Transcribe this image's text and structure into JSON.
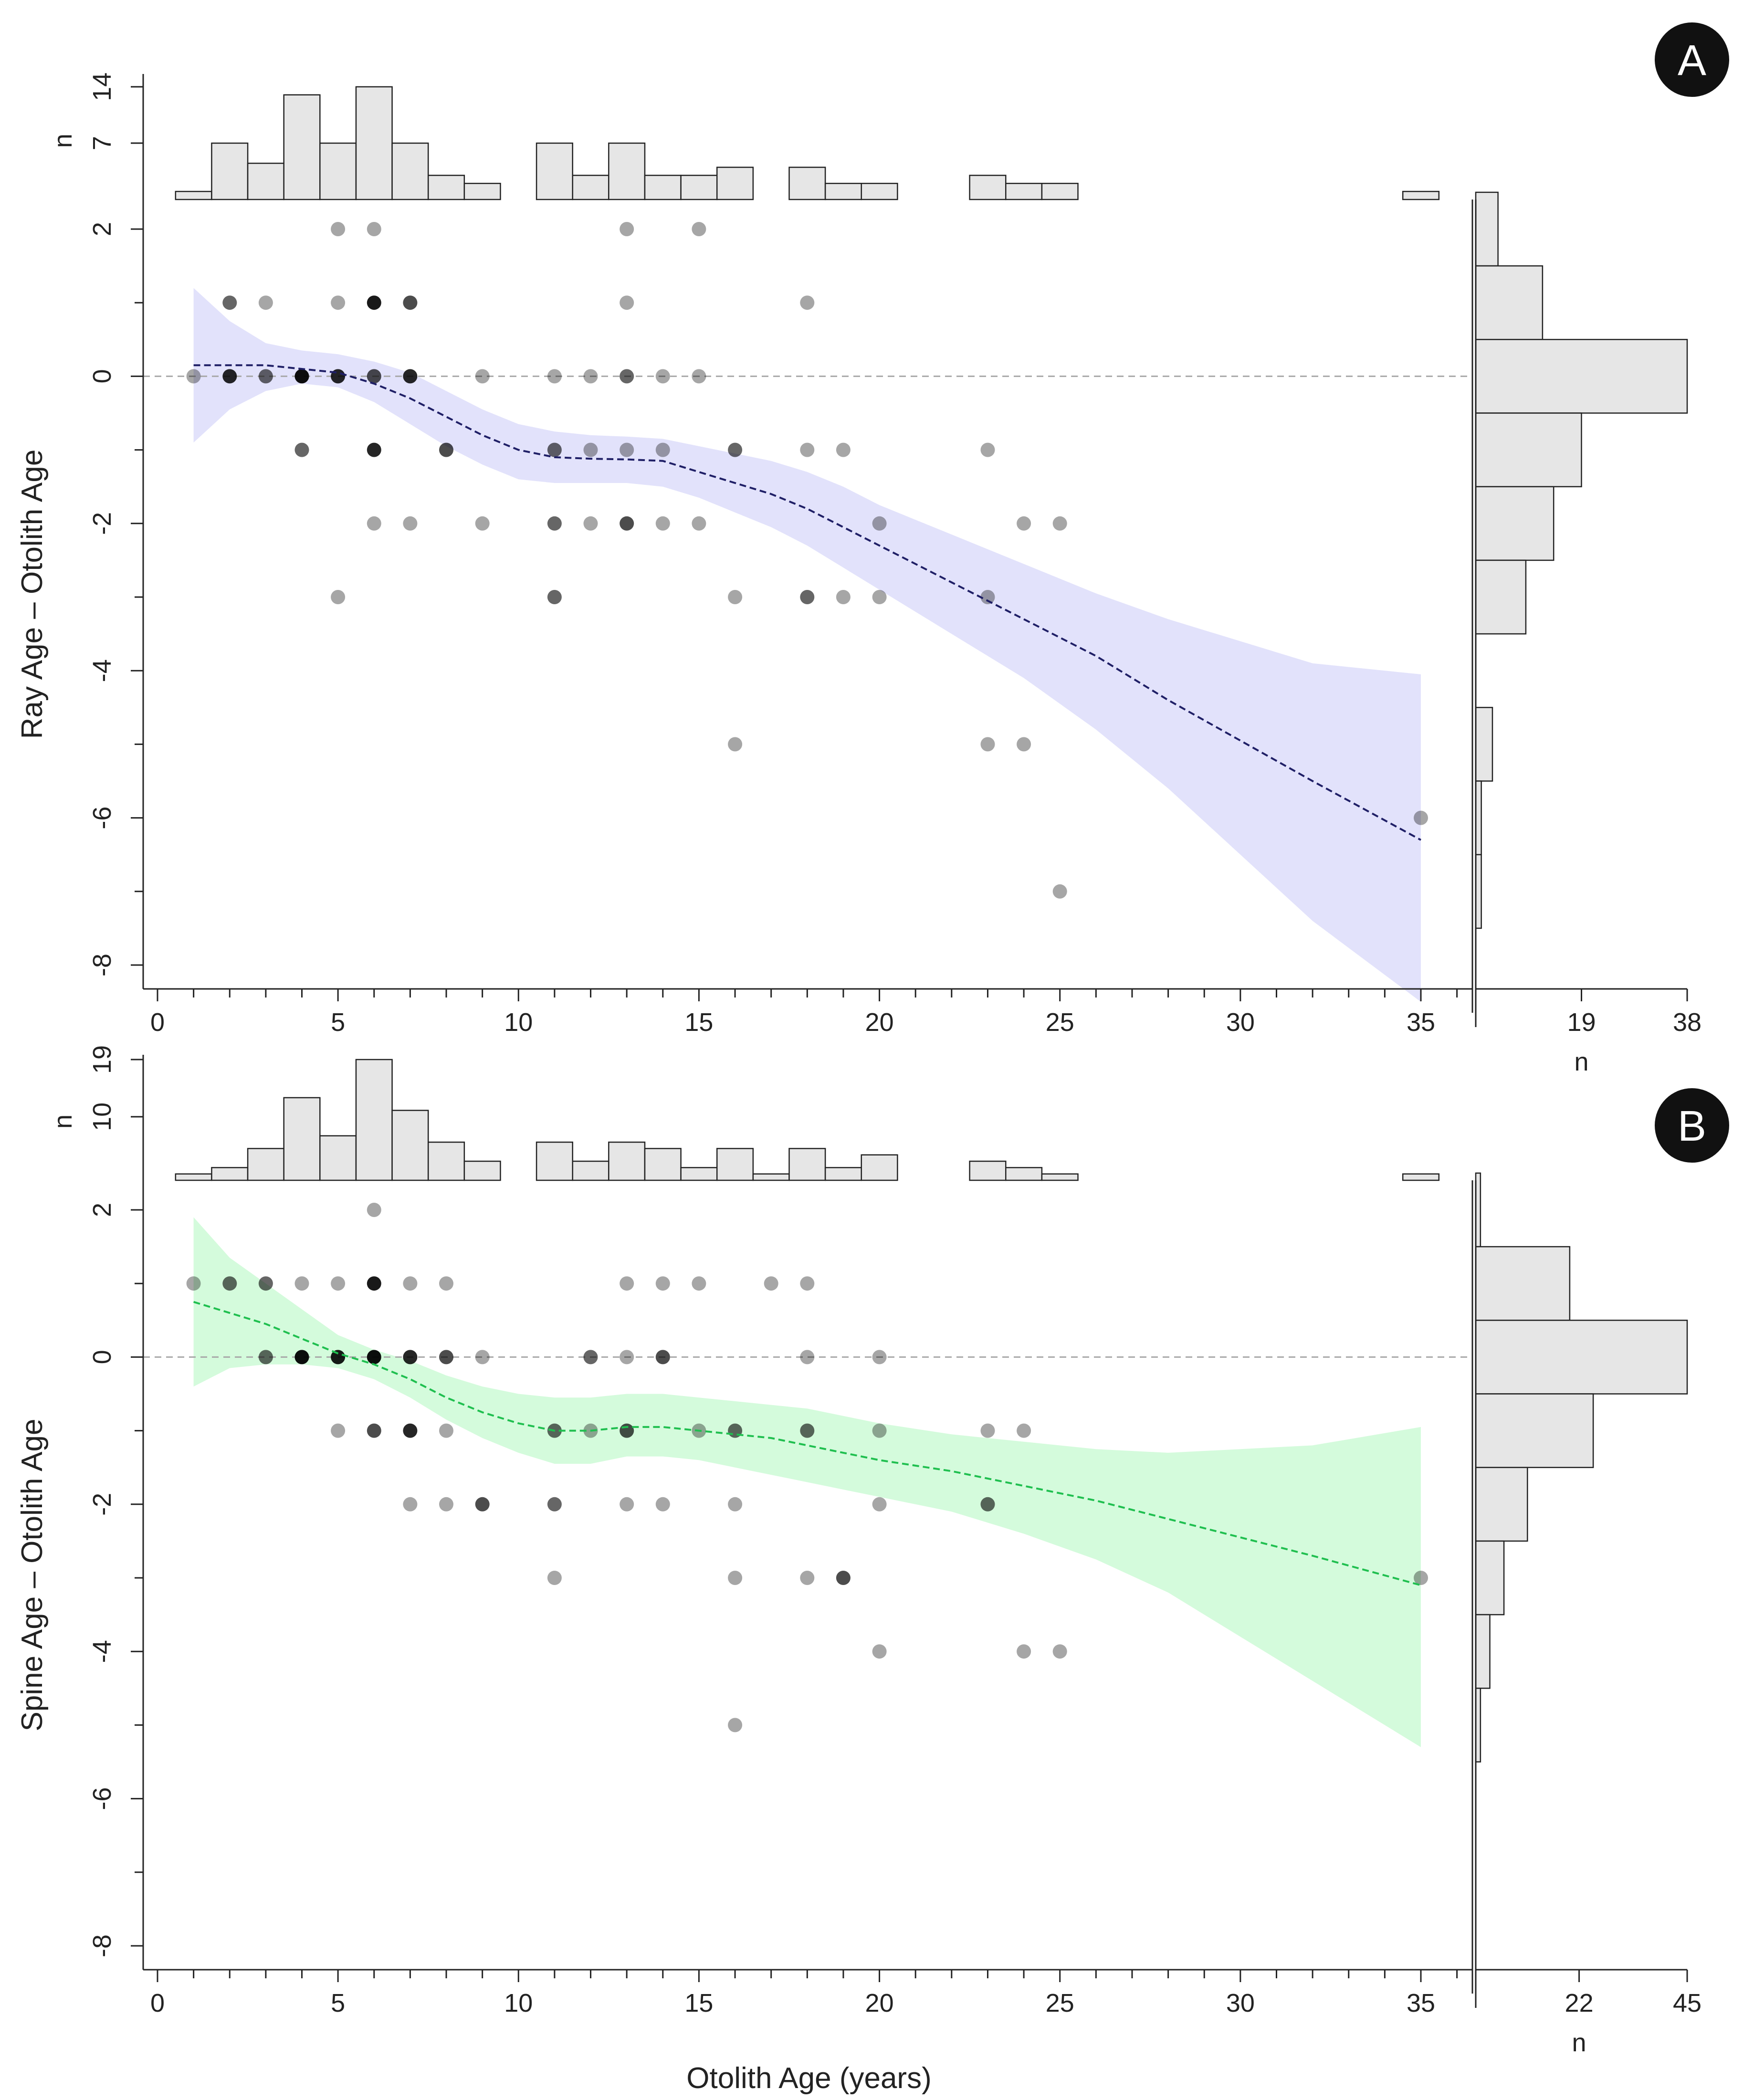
{
  "chart_data": [
    {
      "type": "scatter",
      "panel_label": "A",
      "ylabel": "Ray Age – Otolith Age",
      "xlabel": "",
      "xlim": [
        0,
        36
      ],
      "ylim": [
        -8.4,
        2.4
      ],
      "xticks": [
        "0",
        "5",
        "10",
        "15",
        "20",
        "25",
        "30",
        "35"
      ],
      "yticks": [
        "2",
        "0",
        "-2",
        "-4",
        "-6",
        "-8"
      ],
      "reference_line": 0,
      "smoother": {
        "color": "#1f1f66",
        "band_color": "#e2e2fb",
        "x": [
          1,
          2,
          3,
          4,
          5,
          6,
          7,
          8,
          9,
          10,
          11,
          12,
          13,
          14,
          15,
          16,
          17,
          18,
          19,
          20,
          22,
          24,
          26,
          28,
          30,
          32,
          35
        ],
        "y": [
          0.15,
          0.15,
          0.15,
          0.1,
          0.05,
          -0.1,
          -0.3,
          -0.55,
          -0.8,
          -1.0,
          -1.1,
          -1.12,
          -1.13,
          -1.15,
          -1.3,
          -1.45,
          -1.6,
          -1.8,
          -2.05,
          -2.3,
          -2.8,
          -3.3,
          -3.8,
          -4.4,
          -4.95,
          -5.5,
          -6.3
        ],
        "lower": [
          -0.9,
          -0.45,
          -0.2,
          -0.1,
          -0.15,
          -0.35,
          -0.65,
          -0.95,
          -1.2,
          -1.4,
          -1.45,
          -1.45,
          -1.45,
          -1.5,
          -1.65,
          -1.85,
          -2.05,
          -2.3,
          -2.6,
          -2.9,
          -3.5,
          -4.1,
          -4.8,
          -5.6,
          -6.5,
          -7.4,
          -8.5
        ],
        "upper": [
          1.2,
          0.75,
          0.45,
          0.35,
          0.3,
          0.2,
          0.05,
          -0.2,
          -0.45,
          -0.65,
          -0.75,
          -0.8,
          -0.82,
          -0.85,
          -0.95,
          -1.05,
          -1.15,
          -1.3,
          -1.5,
          -1.75,
          -2.15,
          -2.55,
          -2.95,
          -3.3,
          -3.6,
          -3.9,
          -4.05
        ]
      },
      "points": [
        {
          "x": 1,
          "y": 0,
          "alpha": 0.35
        },
        {
          "x": 2,
          "y": 1,
          "alpha": 0.6
        },
        {
          "x": 2,
          "y": 0,
          "alpha": 0.85
        },
        {
          "x": 3,
          "y": 1,
          "alpha": 0.35
        },
        {
          "x": 3,
          "y": 0,
          "alpha": 0.6
        },
        {
          "x": 4,
          "y": 0,
          "alpha": 0.95
        },
        {
          "x": 4,
          "y": -1,
          "alpha": 0.6
        },
        {
          "x": 5,
          "y": 2,
          "alpha": 0.35
        },
        {
          "x": 5,
          "y": 1,
          "alpha": 0.35
        },
        {
          "x": 5,
          "y": 0,
          "alpha": 0.85
        },
        {
          "x": 5,
          "y": -3,
          "alpha": 0.35
        },
        {
          "x": 6,
          "y": 2,
          "alpha": 0.35
        },
        {
          "x": 6,
          "y": 1,
          "alpha": 0.9
        },
        {
          "x": 6,
          "y": 0,
          "alpha": 0.7
        },
        {
          "x": 6,
          "y": -1,
          "alpha": 0.85
        },
        {
          "x": 6,
          "y": -2,
          "alpha": 0.35
        },
        {
          "x": 7,
          "y": 1,
          "alpha": 0.7
        },
        {
          "x": 7,
          "y": 0,
          "alpha": 0.85
        },
        {
          "x": 7,
          "y": -2,
          "alpha": 0.35
        },
        {
          "x": 8,
          "y": -1,
          "alpha": 0.7
        },
        {
          "x": 9,
          "y": 0,
          "alpha": 0.35
        },
        {
          "x": 9,
          "y": -2,
          "alpha": 0.35
        },
        {
          "x": 11,
          "y": 0,
          "alpha": 0.35
        },
        {
          "x": 11,
          "y": -1,
          "alpha": 0.6
        },
        {
          "x": 11,
          "y": -2,
          "alpha": 0.6
        },
        {
          "x": 11,
          "y": -3,
          "alpha": 0.6
        },
        {
          "x": 12,
          "y": 0,
          "alpha": 0.35
        },
        {
          "x": 12,
          "y": -1,
          "alpha": 0.35
        },
        {
          "x": 12,
          "y": -2,
          "alpha": 0.35
        },
        {
          "x": 13,
          "y": 2,
          "alpha": 0.35
        },
        {
          "x": 13,
          "y": 1,
          "alpha": 0.35
        },
        {
          "x": 13,
          "y": 0,
          "alpha": 0.6
        },
        {
          "x": 13,
          "y": -1,
          "alpha": 0.35
        },
        {
          "x": 13,
          "y": -2,
          "alpha": 0.7
        },
        {
          "x": 14,
          "y": 0,
          "alpha": 0.35
        },
        {
          "x": 14,
          "y": -1,
          "alpha": 0.35
        },
        {
          "x": 14,
          "y": -2,
          "alpha": 0.35
        },
        {
          "x": 15,
          "y": 2,
          "alpha": 0.35
        },
        {
          "x": 15,
          "y": 0,
          "alpha": 0.35
        },
        {
          "x": 15,
          "y": -2,
          "alpha": 0.35
        },
        {
          "x": 16,
          "y": -1,
          "alpha": 0.6
        },
        {
          "x": 16,
          "y": -3,
          "alpha": 0.35
        },
        {
          "x": 16,
          "y": -5,
          "alpha": 0.35
        },
        {
          "x": 18,
          "y": 1,
          "alpha": 0.35
        },
        {
          "x": 18,
          "y": -1,
          "alpha": 0.35
        },
        {
          "x": 18,
          "y": -3,
          "alpha": 0.6
        },
        {
          "x": 19,
          "y": -1,
          "alpha": 0.35
        },
        {
          "x": 19,
          "y": -3,
          "alpha": 0.35
        },
        {
          "x": 20,
          "y": -2,
          "alpha": 0.35
        },
        {
          "x": 20,
          "y": -3,
          "alpha": 0.35
        },
        {
          "x": 23,
          "y": -1,
          "alpha": 0.35
        },
        {
          "x": 23,
          "y": -3,
          "alpha": 0.35
        },
        {
          "x": 23,
          "y": -5,
          "alpha": 0.35
        },
        {
          "x": 24,
          "y": -2,
          "alpha": 0.35
        },
        {
          "x": 24,
          "y": -5,
          "alpha": 0.35
        },
        {
          "x": 25,
          "y": -2,
          "alpha": 0.35
        },
        {
          "x": 25,
          "y": -7,
          "alpha": 0.35
        },
        {
          "x": 35,
          "y": -6,
          "alpha": 0.35
        }
      ],
      "top_histogram": {
        "ylabel": "n",
        "yticks": [
          "7",
          "14"
        ],
        "ymax": 15,
        "bins": [
          1,
          2,
          3,
          4,
          5,
          6,
          7,
          8,
          9,
          10,
          11,
          12,
          13,
          14,
          15,
          16,
          17,
          18,
          19,
          20,
          21,
          22,
          23,
          24,
          25,
          26,
          27,
          28,
          29,
          30,
          31,
          32,
          33,
          34,
          35
        ],
        "counts": [
          1,
          7,
          4.5,
          13,
          7,
          14,
          7,
          3,
          2,
          0,
          7,
          3,
          7,
          3,
          3,
          4,
          0,
          4,
          2,
          2,
          0,
          0,
          3,
          2,
          2,
          0,
          0,
          0,
          0,
          0,
          0,
          0,
          0,
          0,
          1
        ]
      },
      "right_histogram": {
        "xlabel": "n",
        "xticks": [
          "19",
          "38"
        ],
        "xmax": 38,
        "bin_edges": [
          2.5,
          1.5,
          0.5,
          -0.5,
          -1.5,
          -2.5,
          -3.5,
          -4.5,
          -5.5,
          -6.5,
          -7.5
        ],
        "counts": [
          4,
          12,
          38,
          19,
          14,
          9,
          0,
          3,
          1,
          1
        ]
      }
    },
    {
      "type": "scatter",
      "panel_label": "B",
      "ylabel": "Spine Age – Otolith Age",
      "xlabel": "Otolith Age (years)",
      "xlim": [
        0,
        36
      ],
      "ylim": [
        -8.4,
        2.4
      ],
      "xticks": [
        "0",
        "5",
        "10",
        "15",
        "20",
        "25",
        "30",
        "35"
      ],
      "yticks": [
        "2",
        "0",
        "-2",
        "-4",
        "-6",
        "-8"
      ],
      "reference_line": 0,
      "smoother": {
        "color": "#1fbf4f",
        "band_color": "#d4fbdc",
        "x": [
          1,
          2,
          3,
          4,
          5,
          6,
          7,
          8,
          9,
          10,
          11,
          12,
          13,
          14,
          15,
          16,
          17,
          18,
          19,
          20,
          22,
          24,
          26,
          28,
          30,
          32,
          35
        ],
        "y": [
          0.75,
          0.6,
          0.45,
          0.25,
          0.05,
          -0.1,
          -0.3,
          -0.55,
          -0.75,
          -0.9,
          -1.0,
          -1.0,
          -0.95,
          -0.95,
          -1.0,
          -1.05,
          -1.1,
          -1.2,
          -1.3,
          -1.4,
          -1.55,
          -1.75,
          -1.95,
          -2.2,
          -2.45,
          -2.7,
          -3.1
        ],
        "lower": [
          -0.4,
          -0.15,
          -0.1,
          -0.1,
          -0.15,
          -0.3,
          -0.55,
          -0.85,
          -1.1,
          -1.3,
          -1.45,
          -1.45,
          -1.35,
          -1.35,
          -1.4,
          -1.5,
          -1.6,
          -1.7,
          -1.8,
          -1.9,
          -2.1,
          -2.4,
          -2.75,
          -3.2,
          -3.8,
          -4.4,
          -5.3
        ],
        "upper": [
          1.9,
          1.35,
          1.0,
          0.65,
          0.3,
          0.1,
          -0.05,
          -0.25,
          -0.4,
          -0.5,
          -0.55,
          -0.55,
          -0.5,
          -0.5,
          -0.55,
          -0.6,
          -0.65,
          -0.7,
          -0.8,
          -0.9,
          -1.05,
          -1.15,
          -1.25,
          -1.3,
          -1.25,
          -1.2,
          -0.95
        ]
      },
      "points": [
        {
          "x": 1,
          "y": 1,
          "alpha": 0.35
        },
        {
          "x": 2,
          "y": 1,
          "alpha": 0.6
        },
        {
          "x": 3,
          "y": 1,
          "alpha": 0.6
        },
        {
          "x": 3,
          "y": 0,
          "alpha": 0.6
        },
        {
          "x": 4,
          "y": 1,
          "alpha": 0.35
        },
        {
          "x": 4,
          "y": 0,
          "alpha": 0.95
        },
        {
          "x": 5,
          "y": 1,
          "alpha": 0.35
        },
        {
          "x": 5,
          "y": 0,
          "alpha": 0.9
        },
        {
          "x": 5,
          "y": -1,
          "alpha": 0.35
        },
        {
          "x": 6,
          "y": 2,
          "alpha": 0.35
        },
        {
          "x": 6,
          "y": 1,
          "alpha": 0.9
        },
        {
          "x": 6,
          "y": 0,
          "alpha": 0.95
        },
        {
          "x": 6,
          "y": -1,
          "alpha": 0.7
        },
        {
          "x": 7,
          "y": 1,
          "alpha": 0.35
        },
        {
          "x": 7,
          "y": 0,
          "alpha": 0.85
        },
        {
          "x": 7,
          "y": -1,
          "alpha": 0.85
        },
        {
          "x": 7,
          "y": -2,
          "alpha": 0.35
        },
        {
          "x": 8,
          "y": 1,
          "alpha": 0.35
        },
        {
          "x": 8,
          "y": 0,
          "alpha": 0.7
        },
        {
          "x": 8,
          "y": -1,
          "alpha": 0.35
        },
        {
          "x": 8,
          "y": -2,
          "alpha": 0.35
        },
        {
          "x": 9,
          "y": 0,
          "alpha": 0.35
        },
        {
          "x": 9,
          "y": -2,
          "alpha": 0.7
        },
        {
          "x": 11,
          "y": -1,
          "alpha": 0.6
        },
        {
          "x": 11,
          "y": -2,
          "alpha": 0.6
        },
        {
          "x": 11,
          "y": -3,
          "alpha": 0.35
        },
        {
          "x": 12,
          "y": 0,
          "alpha": 0.6
        },
        {
          "x": 12,
          "y": -1,
          "alpha": 0.35
        },
        {
          "x": 13,
          "y": 1,
          "alpha": 0.35
        },
        {
          "x": 13,
          "y": 0,
          "alpha": 0.35
        },
        {
          "x": 13,
          "y": -1,
          "alpha": 0.7
        },
        {
          "x": 13,
          "y": -2,
          "alpha": 0.35
        },
        {
          "x": 14,
          "y": 1,
          "alpha": 0.35
        },
        {
          "x": 14,
          "y": 0,
          "alpha": 0.7
        },
        {
          "x": 14,
          "y": -2,
          "alpha": 0.35
        },
        {
          "x": 15,
          "y": 1,
          "alpha": 0.35
        },
        {
          "x": 15,
          "y": -1,
          "alpha": 0.35
        },
        {
          "x": 16,
          "y": -1,
          "alpha": 0.6
        },
        {
          "x": 16,
          "y": -2,
          "alpha": 0.35
        },
        {
          "x": 16,
          "y": -3,
          "alpha": 0.35
        },
        {
          "x": 16,
          "y": -5,
          "alpha": 0.35
        },
        {
          "x": 17,
          "y": 1,
          "alpha": 0.35
        },
        {
          "x": 18,
          "y": 1,
          "alpha": 0.35
        },
        {
          "x": 18,
          "y": 0,
          "alpha": 0.35
        },
        {
          "x": 18,
          "y": -1,
          "alpha": 0.6
        },
        {
          "x": 18,
          "y": -3,
          "alpha": 0.35
        },
        {
          "x": 19,
          "y": -3,
          "alpha": 0.7
        },
        {
          "x": 20,
          "y": 0,
          "alpha": 0.35
        },
        {
          "x": 20,
          "y": -1,
          "alpha": 0.35
        },
        {
          "x": 20,
          "y": -2,
          "alpha": 0.35
        },
        {
          "x": 20,
          "y": -4,
          "alpha": 0.35
        },
        {
          "x": 23,
          "y": -1,
          "alpha": 0.35
        },
        {
          "x": 23,
          "y": -2,
          "alpha": 0.6
        },
        {
          "x": 24,
          "y": -1,
          "alpha": 0.35
        },
        {
          "x": 24,
          "y": -4,
          "alpha": 0.35
        },
        {
          "x": 25,
          "y": -4,
          "alpha": 0.35
        },
        {
          "x": 35,
          "y": -3,
          "alpha": 0.35
        }
      ],
      "top_histogram": {
        "ylabel": "n",
        "yticks": [
          "10",
          "19"
        ],
        "ymax": 19,
        "bins": [
          1,
          2,
          3,
          4,
          5,
          6,
          7,
          8,
          9,
          10,
          11,
          12,
          13,
          14,
          15,
          16,
          17,
          18,
          19,
          20,
          21,
          22,
          23,
          24,
          25,
          26,
          27,
          28,
          29,
          30,
          31,
          32,
          33,
          34,
          35
        ],
        "counts": [
          1,
          2,
          5,
          13,
          7,
          19,
          11,
          6,
          3,
          0,
          6,
          3,
          6,
          5,
          2,
          5,
          1,
          5,
          2,
          4,
          0,
          0,
          3,
          2,
          1,
          0,
          0,
          0,
          0,
          0,
          0,
          0,
          0,
          0,
          1
        ]
      },
      "right_histogram": {
        "xlabel": "n",
        "xticks": [
          "22",
          "45"
        ],
        "xmax": 45,
        "bin_edges": [
          2.5,
          1.5,
          0.5,
          -0.5,
          -1.5,
          -2.5,
          -3.5,
          -4.5,
          -5.5,
          -6.5,
          -7.5
        ],
        "counts": [
          1,
          20,
          45,
          25,
          11,
          6,
          3,
          1,
          0,
          0
        ]
      }
    }
  ]
}
